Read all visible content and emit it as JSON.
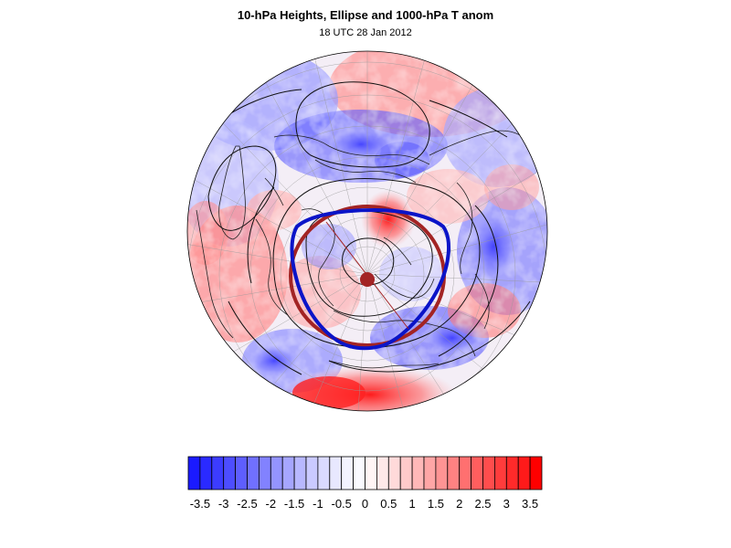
{
  "figure": {
    "title": "10-hPa Heights, Ellipse and 1000-hPa T anom",
    "subtitle": "18 UTC 28 Jan 2012"
  },
  "colors": {
    "ellipse_blue": "#0b14c8",
    "circle_red": "#a32424",
    "contour": "#111111",
    "coast": "#222222",
    "grid": "#9a9a9a"
  },
  "colorbar": {
    "levels": [
      -3.75,
      -3.5,
      -3.25,
      -3,
      -2.75,
      -2.5,
      -2.25,
      -2,
      -1.75,
      -1.5,
      -1.25,
      -1,
      -0.75,
      -0.5,
      -0.25,
      0,
      0.25,
      0.5,
      0.75,
      1,
      1.25,
      1.5,
      1.75,
      2,
      2.25,
      2.5,
      2.75,
      3,
      3.25,
      3.5,
      3.75
    ],
    "tick_labels": [
      "-3.5",
      "-3",
      "-2.5",
      "-2",
      "-1.5",
      "-1",
      "-0.5",
      "0",
      "0.5",
      "1",
      "1.5",
      "2",
      "2.5",
      "3",
      "3.5"
    ],
    "colors": [
      "#1a1aff",
      "#2a2aff",
      "#3c3cff",
      "#4d4dff",
      "#5e5eff",
      "#7070ff",
      "#8282ff",
      "#9494ff",
      "#a6a6ff",
      "#b8b8ff",
      "#cacaff",
      "#dadaff",
      "#e8e8ff",
      "#f3f3ff",
      "#fafaff",
      "#fff5f5",
      "#ffe8e8",
      "#ffdada",
      "#ffcaca",
      "#ffb8b8",
      "#ffa6a6",
      "#ff9494",
      "#ff8282",
      "#ff7070",
      "#ff5e5e",
      "#ff4d4d",
      "#ff3c3c",
      "#ff2a2a",
      "#ff1a1a",
      "#ff0000"
    ]
  }
}
